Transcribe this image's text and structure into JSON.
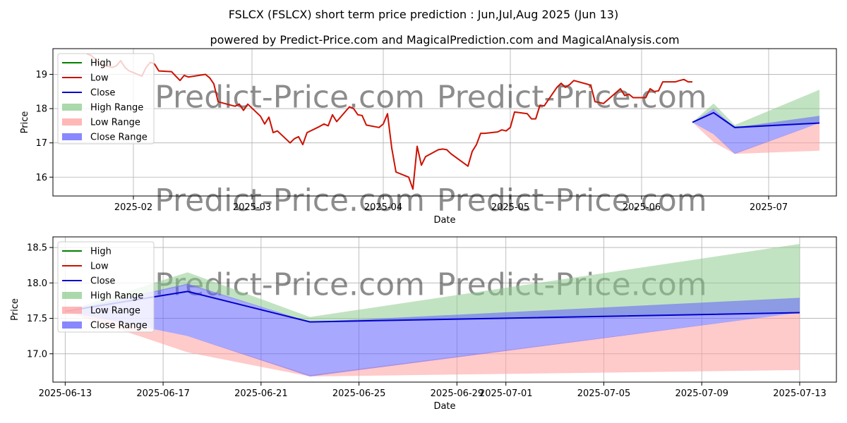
{
  "title": "FSLCX (FSLCX) short term price prediction : Jun,Jul,Aug 2025 (Jun 13)",
  "subtitle": "powered by Predict-Price.com and MagicalPrediction.com and MagicalAnalysis.com",
  "watermark": "Predict-Price.com",
  "colors": {
    "high": "#008000",
    "low": "#cc1100",
    "close": "#0000cc",
    "high_range": "#8fcc8f",
    "low_range": "#ff9f9f",
    "close_range": "#6060ff",
    "grid": "#b0b0b0"
  },
  "chart_data": [
    {
      "type": "line",
      "xlabel": "Date",
      "ylabel": "Price",
      "xlim": [
        "2025-01-13",
        "2025-07-17"
      ],
      "ylim": [
        15.45,
        19.75
      ],
      "xticks": [
        "2025-02",
        "2025-03",
        "2025-04",
        "2025-05",
        "2025-06",
        "2025-07"
      ],
      "xtick_dates": [
        "2025-02-01",
        "2025-03-01",
        "2025-04-01",
        "2025-05-01",
        "2025-06-01",
        "2025-07-01"
      ],
      "yticks": [
        16,
        17,
        18,
        19
      ],
      "grid": true,
      "legend": {
        "position": "top-left",
        "entries": [
          "High",
          "Low",
          "Close",
          "High Range",
          "Low Range",
          "Close Range"
        ]
      },
      "history": {
        "dates": [
          "2025-01-21",
          "2025-01-22",
          "2025-01-23",
          "2025-01-24",
          "2025-01-27",
          "2025-01-28",
          "2025-01-29",
          "2025-01-30",
          "2025-01-31",
          "2025-02-03",
          "2025-02-04",
          "2025-02-05",
          "2025-02-06",
          "2025-02-07",
          "2025-02-10",
          "2025-02-11",
          "2025-02-12",
          "2025-02-13",
          "2025-02-14",
          "2025-02-18",
          "2025-02-19",
          "2025-02-20",
          "2025-02-21",
          "2025-02-24",
          "2025-02-25",
          "2025-02-26",
          "2025-02-27",
          "2025-02-28",
          "2025-03-03",
          "2025-03-04",
          "2025-03-05",
          "2025-03-06",
          "2025-03-07",
          "2025-03-10",
          "2025-03-11",
          "2025-03-12",
          "2025-03-13",
          "2025-03-14",
          "2025-03-17",
          "2025-03-18",
          "2025-03-19",
          "2025-03-20",
          "2025-03-21",
          "2025-03-24",
          "2025-03-25",
          "2025-03-26",
          "2025-03-27",
          "2025-03-28",
          "2025-03-31",
          "2025-04-01",
          "2025-04-02",
          "2025-04-03",
          "2025-04-04",
          "2025-04-07",
          "2025-04-08",
          "2025-04-09",
          "2025-04-10",
          "2025-04-11",
          "2025-04-14",
          "2025-04-15",
          "2025-04-16",
          "2025-04-17",
          "2025-04-21",
          "2025-04-22",
          "2025-04-23",
          "2025-04-24",
          "2025-04-25",
          "2025-04-28",
          "2025-04-29",
          "2025-04-30",
          "2025-05-01",
          "2025-05-02",
          "2025-05-05",
          "2025-05-06",
          "2025-05-07",
          "2025-05-08",
          "2025-05-09",
          "2025-05-12",
          "2025-05-13",
          "2025-05-14",
          "2025-05-15",
          "2025-05-16",
          "2025-05-19",
          "2025-05-20",
          "2025-05-21",
          "2025-05-22",
          "2025-05-23",
          "2025-05-27",
          "2025-05-28",
          "2025-05-29",
          "2025-05-30",
          "2025-06-02",
          "2025-06-03",
          "2025-06-04",
          "2025-06-05",
          "2025-06-06",
          "2025-06-09",
          "2025-06-10",
          "2025-06-11",
          "2025-06-12",
          "2025-06-13"
        ],
        "close": [
          19.6,
          19.55,
          19.45,
          19.3,
          19.2,
          19.25,
          19.4,
          19.2,
          19.1,
          18.95,
          19.2,
          19.35,
          19.3,
          19.1,
          19.08,
          18.95,
          18.82,
          18.97,
          18.92,
          19.0,
          18.9,
          18.72,
          18.2,
          18.1,
          18.07,
          18.13,
          17.95,
          18.13,
          17.78,
          17.55,
          17.75,
          17.3,
          17.35,
          17.0,
          17.12,
          17.18,
          16.95,
          17.3,
          17.48,
          17.55,
          17.5,
          17.82,
          17.62,
          18.05,
          18.0,
          17.82,
          17.8,
          17.52,
          17.45,
          17.55,
          17.85,
          16.85,
          16.15,
          16.0,
          15.65,
          16.9,
          16.35,
          16.6,
          16.8,
          16.82,
          16.8,
          16.68,
          16.32,
          16.75,
          16.95,
          17.28,
          17.28,
          17.32,
          17.38,
          17.35,
          17.45,
          17.9,
          17.85,
          17.7,
          17.7,
          18.1,
          18.08,
          18.62,
          18.74,
          18.62,
          18.7,
          18.82,
          18.72,
          18.68,
          18.2,
          18.18,
          18.15,
          18.58,
          18.38,
          18.42,
          18.32,
          18.32,
          18.58,
          18.5,
          18.52,
          18.78,
          18.78,
          18.82,
          18.85,
          18.78,
          18.78
        ]
      },
      "forecast": {
        "dates": [
          "2025-06-13",
          "2025-06-18",
          "2025-06-23",
          "2025-07-13"
        ],
        "close": [
          17.6,
          17.88,
          17.45,
          17.58
        ],
        "high_range": [
          [
            17.6,
            17.6
          ],
          [
            17.97,
            18.15
          ],
          [
            17.45,
            17.52
          ],
          [
            17.58,
            18.55
          ]
        ],
        "low_range": [
          [
            17.6,
            17.6
          ],
          [
            17.02,
            17.25
          ],
          [
            16.68,
            16.7
          ],
          [
            16.77,
            17.58
          ]
        ],
        "close_range": [
          [
            17.6,
            17.6
          ],
          [
            17.25,
            17.99
          ],
          [
            16.68,
            17.45
          ],
          [
            17.58,
            17.79
          ]
        ]
      }
    },
    {
      "type": "line",
      "xlabel": "Date",
      "ylabel": "Price",
      "xlim": [
        "2025-06-12.5",
        "2025-07-14.5"
      ],
      "ylim": [
        16.6,
        18.65
      ],
      "xticks": [
        "2025-06-13",
        "2025-06-17",
        "2025-06-21",
        "2025-06-25",
        "2025-06-29",
        "2025-07-01",
        "2025-07-05",
        "2025-07-09",
        "2025-07-13"
      ],
      "xtick_dates": [
        "2025-06-13",
        "2025-06-17",
        "2025-06-21",
        "2025-06-25",
        "2025-06-29",
        "2025-07-01",
        "2025-07-05",
        "2025-07-09",
        "2025-07-13"
      ],
      "yticks": [
        17.0,
        17.5,
        18.0,
        18.5
      ],
      "grid": true,
      "legend": {
        "position": "top-left",
        "entries": [
          "High",
          "Low",
          "Close",
          "High Range",
          "Low Range",
          "Close Range"
        ]
      },
      "forecast": {
        "dates": [
          "2025-06-13",
          "2025-06-18",
          "2025-06-23",
          "2025-07-13"
        ],
        "close": [
          17.6,
          17.88,
          17.45,
          17.58
        ],
        "high_range": [
          [
            17.6,
            17.6
          ],
          [
            17.97,
            18.15
          ],
          [
            17.45,
            17.52
          ],
          [
            17.58,
            18.55
          ]
        ],
        "low_range": [
          [
            17.6,
            17.6
          ],
          [
            17.02,
            17.25
          ],
          [
            16.68,
            16.7
          ],
          [
            16.77,
            17.58
          ]
        ],
        "close_range": [
          [
            17.6,
            17.6
          ],
          [
            17.25,
            17.99
          ],
          [
            16.68,
            17.45
          ],
          [
            17.58,
            17.79
          ]
        ]
      }
    }
  ]
}
